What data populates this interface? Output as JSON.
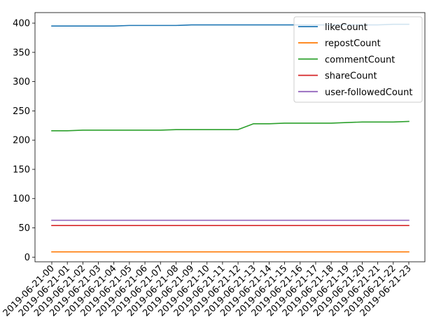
{
  "chart_data": {
    "type": "line",
    "title": "",
    "xlabel": "",
    "ylabel": "",
    "x": [
      "2019-06-21-00",
      "2019-06-21-01",
      "2019-06-21-02",
      "2019-06-21-03",
      "2019-06-21-04",
      "2019-06-21-05",
      "2019-06-21-06",
      "2019-06-21-07",
      "2019-06-21-08",
      "2019-06-21-09",
      "2019-06-21-10",
      "2019-06-21-11",
      "2019-06-21-12",
      "2019-06-21-13",
      "2019-06-21-14",
      "2019-06-21-15",
      "2019-06-21-16",
      "2019-06-21-17",
      "2019-06-21-18",
      "2019-06-21-19",
      "2019-06-21-20",
      "2019-06-21-21",
      "2019-06-21-22",
      "2019-06-21-23"
    ],
    "ylim": [
      -8,
      418
    ],
    "yticks": [
      0,
      50,
      100,
      150,
      200,
      250,
      300,
      350,
      400
    ],
    "grid": false,
    "legend": "top-right",
    "series": [
      {
        "name": "likeCount",
        "color": "#1f77b4",
        "values": [
          395,
          395,
          395,
          395,
          395,
          396,
          396,
          396,
          396,
          397,
          397,
          397,
          397,
          397,
          397,
          397,
          397,
          397,
          397,
          397,
          397,
          397,
          398,
          398
        ]
      },
      {
        "name": "repostCount",
        "color": "#ff7f0e",
        "values": [
          9,
          9,
          9,
          9,
          9,
          9,
          9,
          9,
          9,
          9,
          9,
          9,
          9,
          9,
          9,
          9,
          9,
          9,
          9,
          9,
          9,
          9,
          9,
          9
        ]
      },
      {
        "name": "commentCount",
        "color": "#2ca02c",
        "values": [
          216,
          216,
          217,
          217,
          217,
          217,
          217,
          217,
          218,
          218,
          218,
          218,
          218,
          228,
          228,
          229,
          229,
          229,
          229,
          230,
          231,
          231,
          231,
          232
        ]
      },
      {
        "name": "shareCount",
        "color": "#d62728",
        "values": [
          54,
          54,
          54,
          54,
          54,
          54,
          54,
          54,
          54,
          54,
          54,
          54,
          54,
          54,
          54,
          54,
          54,
          54,
          54,
          54,
          54,
          54,
          54,
          54
        ]
      },
      {
        "name": "user-followedCount",
        "color": "#9467bd",
        "values": [
          63,
          63,
          63,
          63,
          63,
          63,
          63,
          63,
          63,
          63,
          63,
          63,
          63,
          63,
          63,
          63,
          63,
          63,
          63,
          63,
          63,
          63,
          63,
          63
        ]
      }
    ]
  }
}
